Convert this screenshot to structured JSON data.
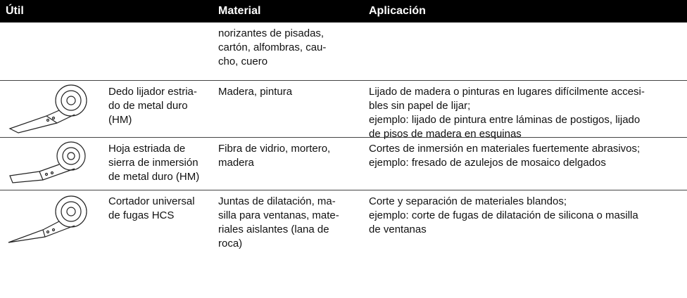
{
  "header": {
    "columns": [
      "Útil",
      "Material",
      "Aplicación"
    ]
  },
  "rows": [
    {
      "material": [
        "norizantes de pisadas,",
        "cartón, alfombras, cau-",
        "cho, cuero"
      ]
    },
    {
      "tool": [
        "Dedo lijador estria-",
        "do de metal duro",
        "(HM)"
      ],
      "material": [
        "Madera, pintura"
      ],
      "application": [
        "Lijado de madera o pinturas en lugares difícilmente accesi-",
        "bles sin papel de lijar;",
        "ejemplo: lijado de pintura entre láminas de postigos, lijado",
        "de pisos de madera en esquinas"
      ]
    },
    {
      "tool": [
        "Hoja estriada de",
        "sierra de inmersión",
        "de metal duro (HM)"
      ],
      "material": [
        "Fibra de vidrio, mortero,",
        "madera"
      ],
      "application": [
        "Cortes de inmersión en materiales fuertemente abrasivos;",
        "ejemplo: fresado de azulejos de mosaico delgados"
      ]
    },
    {
      "tool": [
        "Cortador universal",
        "de fugas HCS"
      ],
      "material": [
        "Juntas de dilatación, ma-",
        "silla para ventanas, mate-",
        "riales aislantes (lana de",
        "roca)"
      ],
      "application": [
        "Corte y separación de materiales blandos;",
        "ejemplo: corte de fugas de dilatación de silicona o masilla",
        "de ventanas"
      ]
    }
  ]
}
